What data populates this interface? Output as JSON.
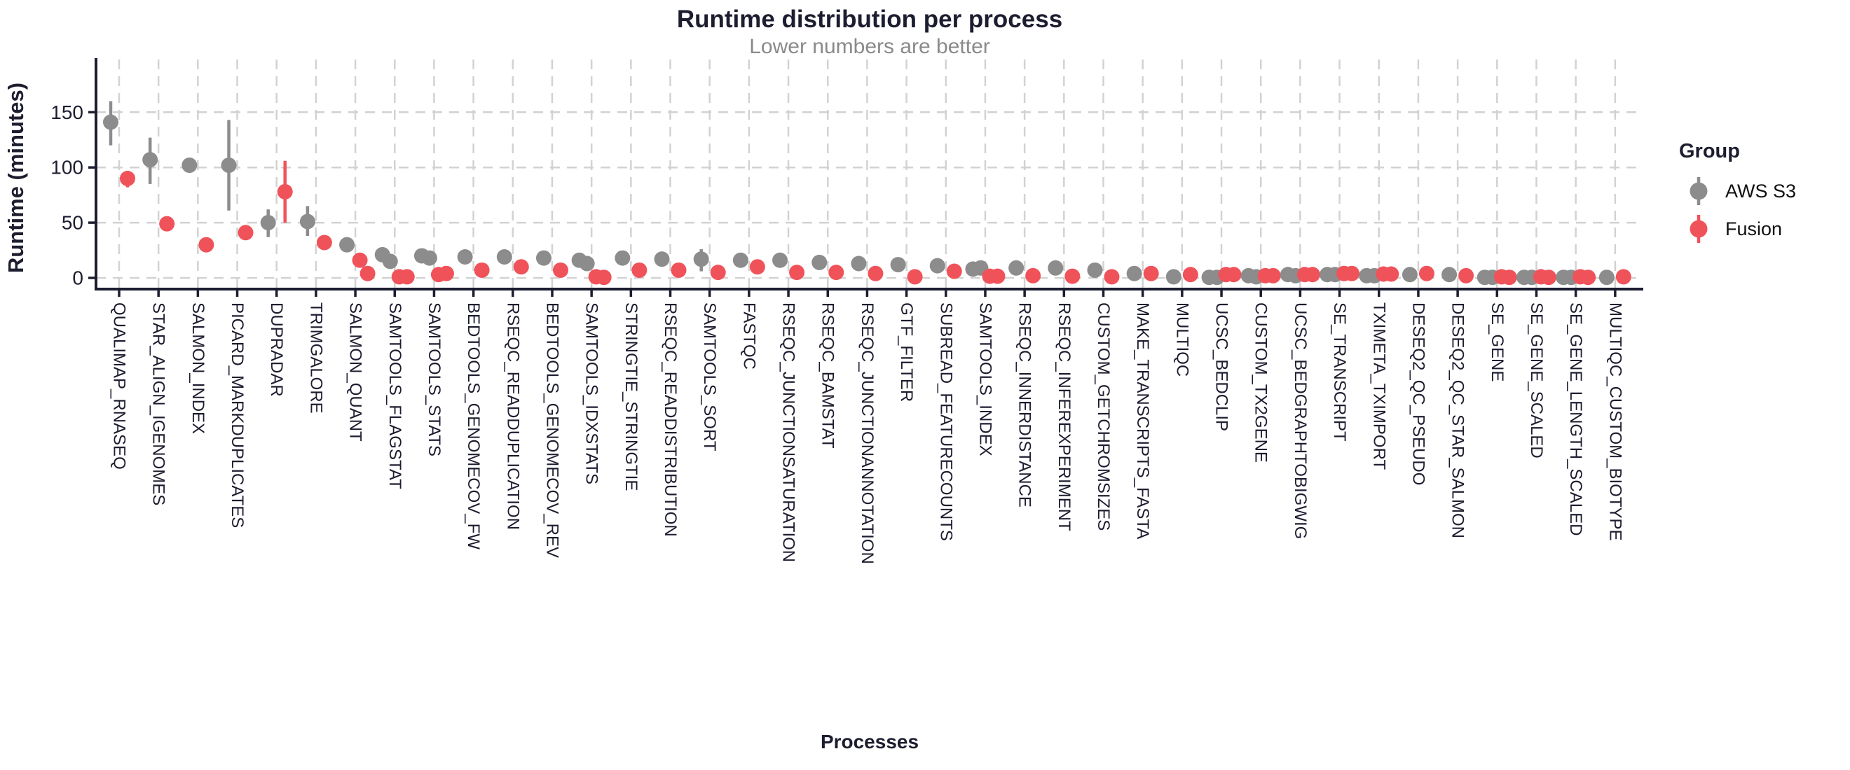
{
  "title": "Runtime distribution per process",
  "subtitle": "Lower numbers are better",
  "x_axis_label": "Processes",
  "y_axis_label": "Runtime (minutes)",
  "legend": {
    "title": "Group",
    "items": [
      {
        "label": "AWS S3",
        "color": "#8C8C8C"
      },
      {
        "label": "Fusion",
        "color": "#F0525A"
      }
    ]
  },
  "colors": {
    "aws_s3": "#8C8C8C",
    "fusion": "#F0525A",
    "axis": "#1d1d30",
    "grid": "#d2d2d2",
    "subtitle": "#8a8a8a",
    "background": "#ffffff"
  },
  "chart_data": {
    "type": "scatter",
    "title": "Runtime distribution per process",
    "subtitle": "Lower numbers are better",
    "xlabel": "Processes",
    "ylabel": "Runtime (minutes)",
    "legend_position": "right",
    "grid": "dashed",
    "y_ticks": [
      0,
      50,
      100,
      150
    ],
    "ylim": [
      0,
      165
    ],
    "series_names": [
      "AWS S3",
      "Fusion"
    ],
    "categories": [
      {
        "name": "QUALIMAP_RNASEQ",
        "aws_s3": [
          141
        ],
        "aws_s3_range": [
          120,
          160
        ],
        "fusion": [
          90
        ],
        "fusion_range": [
          82,
          97
        ]
      },
      {
        "name": "STAR_ALIGN_IGENOMES",
        "aws_s3": [
          107
        ],
        "aws_s3_range": [
          85,
          127
        ],
        "fusion": [
          49
        ]
      },
      {
        "name": "SALMON_INDEX",
        "aws_s3": [
          102
        ],
        "fusion": [
          30
        ]
      },
      {
        "name": "PICARD_MARKDUPLICATES",
        "aws_s3": [
          102
        ],
        "aws_s3_range": [
          61,
          143
        ],
        "fusion": [
          41
        ]
      },
      {
        "name": "DUPRADAR",
        "aws_s3": [
          50
        ],
        "aws_s3_range": [
          37,
          62
        ],
        "fusion": [
          78
        ],
        "fusion_range": [
          50,
          106
        ]
      },
      {
        "name": "TRIMGALORE",
        "aws_s3": [
          51
        ],
        "aws_s3_range": [
          38,
          65
        ],
        "fusion": [
          32
        ]
      },
      {
        "name": "SALMON_QUANT",
        "aws_s3": [
          30
        ],
        "fusion": [
          16,
          4
        ]
      },
      {
        "name": "SAMTOOLS_FLAGSTAT",
        "aws_s3": [
          21,
          15
        ],
        "fusion": [
          1,
          1
        ]
      },
      {
        "name": "SAMTOOLS_STATS",
        "aws_s3": [
          20,
          18
        ],
        "aws_s3_range": [
          14,
          25
        ],
        "fusion": [
          3,
          4
        ]
      },
      {
        "name": "BEDTOOLS_GENOMECOV_FW",
        "aws_s3": [
          19
        ],
        "fusion": [
          7
        ]
      },
      {
        "name": "RSEQC_READDUPLICATION",
        "aws_s3": [
          19
        ],
        "fusion": [
          10
        ]
      },
      {
        "name": "BEDTOOLS_GENOMECOV_REV",
        "aws_s3": [
          18
        ],
        "fusion": [
          7
        ]
      },
      {
        "name": "SAMTOOLS_IDXSTATS",
        "aws_s3": [
          16,
          13
        ],
        "aws_s3_range": [
          10,
          21
        ],
        "fusion": [
          1,
          0.5
        ]
      },
      {
        "name": "STRINGTIE_STRINGTIE",
        "aws_s3": [
          18
        ],
        "fusion": [
          7
        ]
      },
      {
        "name": "RSEQC_READDISTRIBUTION",
        "aws_s3": [
          17
        ],
        "fusion": [
          7
        ]
      },
      {
        "name": "SAMTOOLS_SORT",
        "aws_s3": [
          17
        ],
        "aws_s3_range": [
          6,
          26
        ],
        "fusion": [
          5
        ]
      },
      {
        "name": "FASTQC",
        "aws_s3": [
          16
        ],
        "fusion": [
          10
        ]
      },
      {
        "name": "RSEQC_JUNCTIONSATURATION",
        "aws_s3": [
          16
        ],
        "fusion": [
          5
        ]
      },
      {
        "name": "RSEQC_BAMSTAT",
        "aws_s3": [
          14
        ],
        "fusion": [
          5
        ]
      },
      {
        "name": "RSEQC_JUNCTIONANNOTATION",
        "aws_s3": [
          13
        ],
        "fusion": [
          4
        ]
      },
      {
        "name": "GTF_FILTER",
        "aws_s3": [
          12
        ],
        "fusion": [
          1
        ]
      },
      {
        "name": "SUBREAD_FEATURECOUNTS",
        "aws_s3": [
          11
        ],
        "fusion": [
          6
        ]
      },
      {
        "name": "SAMTOOLS_INDEX",
        "aws_s3": [
          8,
          9
        ],
        "fusion": [
          1.5,
          1.5
        ]
      },
      {
        "name": "RSEQC_INNERDISTANCE",
        "aws_s3": [
          9
        ],
        "fusion": [
          2
        ]
      },
      {
        "name": "RSEQC_INFEREXPERIMENT",
        "aws_s3": [
          9
        ],
        "fusion": [
          1.5
        ]
      },
      {
        "name": "CUSTOM_GETCHROMSIZES",
        "aws_s3": [
          7
        ],
        "fusion": [
          1
        ]
      },
      {
        "name": "MAKE_TRANSCRIPTS_FASTA",
        "aws_s3": [
          4
        ],
        "fusion": [
          4
        ]
      },
      {
        "name": "MULTIQC",
        "aws_s3": [
          1
        ],
        "fusion": [
          3
        ]
      },
      {
        "name": "UCSC_BEDCLIP",
        "aws_s3": [
          0.5,
          0.5
        ],
        "fusion": [
          3,
          3
        ]
      },
      {
        "name": "CUSTOM_TX2GENE",
        "aws_s3": [
          2,
          1
        ],
        "fusion": [
          2,
          2
        ]
      },
      {
        "name": "UCSC_BEDGRAPHTOBIGWIG",
        "aws_s3": [
          3,
          2
        ],
        "fusion": [
          3,
          3
        ]
      },
      {
        "name": "SE_TRANSCRIPT",
        "aws_s3": [
          3,
          3
        ],
        "fusion": [
          4,
          4
        ]
      },
      {
        "name": "TXIMETA_TXIMPORT",
        "aws_s3": [
          2,
          2
        ],
        "fusion": [
          3.5,
          3.5
        ]
      },
      {
        "name": "DESEQ2_QC_PSEUDO",
        "aws_s3": [
          3
        ],
        "fusion": [
          4
        ]
      },
      {
        "name": "DESEQ2_QC_STAR_SALMON",
        "aws_s3": [
          3
        ],
        "fusion": [
          2
        ]
      },
      {
        "name": "SE_GENE",
        "aws_s3": [
          0.5,
          0.5
        ],
        "fusion": [
          1,
          0.5
        ]
      },
      {
        "name": "SE_GENE_SCALED",
        "aws_s3": [
          0.5,
          0.5
        ],
        "fusion": [
          1,
          0.5
        ]
      },
      {
        "name": "SE_GENE_LENGTH_SCALED",
        "aws_s3": [
          0.5,
          0.5
        ],
        "fusion": [
          1,
          0.5
        ]
      },
      {
        "name": "MULTIQC_CUSTOM_BIOTYPE",
        "aws_s3": [
          0.5
        ],
        "fusion": [
          1
        ]
      }
    ]
  }
}
